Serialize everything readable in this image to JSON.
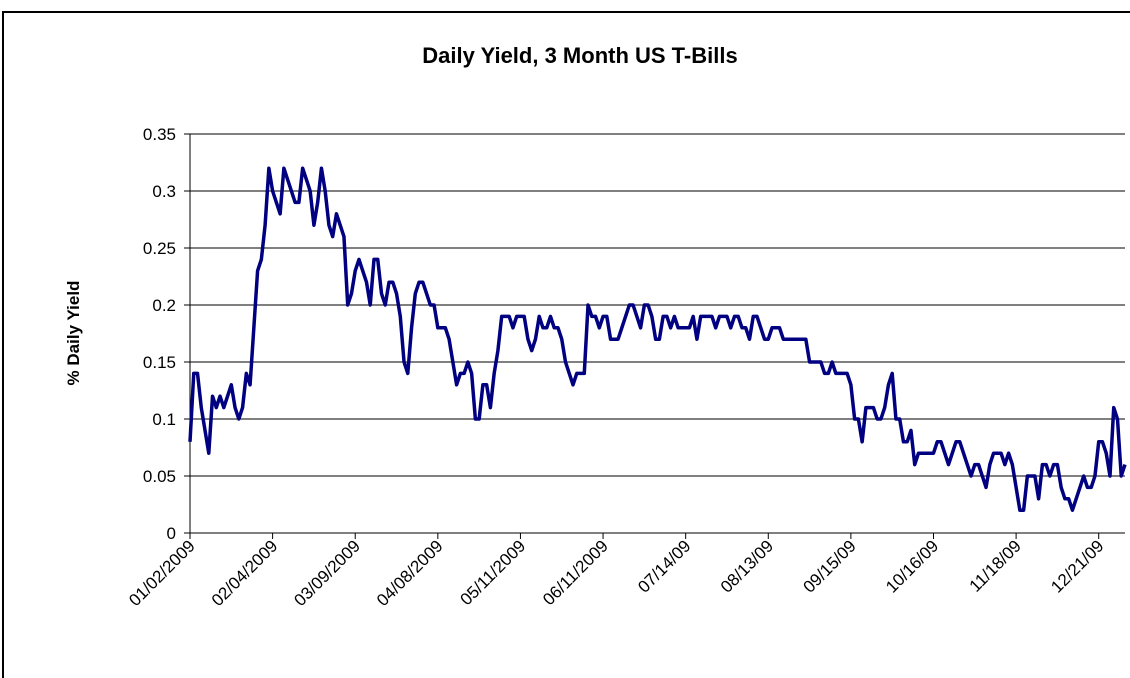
{
  "chart_data": {
    "type": "line",
    "title": "Daily Yield, 3 Month US T-Bills",
    "y_label": "% Daily Yield",
    "color": "#000080",
    "grid": true,
    "ylim": [
      0,
      0.35
    ],
    "yticks": [
      0,
      0.05,
      0.1,
      0.15,
      0.2,
      0.25,
      0.3,
      0.35
    ],
    "categories": [
      "01/02/2009",
      null,
      null,
      null,
      null,
      null,
      null,
      null,
      null,
      null,
      null,
      null,
      null,
      null,
      null,
      null,
      null,
      null,
      null,
      null,
      null,
      null,
      "02/04/2009",
      null,
      null,
      null,
      null,
      null,
      null,
      null,
      null,
      null,
      null,
      null,
      null,
      null,
      null,
      null,
      null,
      null,
      null,
      null,
      null,
      null,
      "03/09/2009",
      null,
      null,
      null,
      null,
      null,
      null,
      null,
      null,
      null,
      null,
      null,
      null,
      null,
      null,
      null,
      null,
      null,
      null,
      null,
      null,
      null,
      "04/08/2009",
      null,
      null,
      null,
      null,
      null,
      null,
      null,
      null,
      null,
      null,
      null,
      null,
      null,
      null,
      null,
      null,
      null,
      null,
      null,
      null,
      null,
      "05/11/2009",
      null,
      null,
      null,
      null,
      null,
      null,
      null,
      null,
      null,
      null,
      null,
      null,
      null,
      null,
      null,
      null,
      null,
      null,
      null,
      null,
      null,
      "06/11/2009",
      null,
      null,
      null,
      null,
      null,
      null,
      null,
      null,
      null,
      null,
      null,
      null,
      null,
      null,
      null,
      null,
      null,
      null,
      null,
      null,
      null,
      "07/14/09",
      null,
      null,
      null,
      null,
      null,
      null,
      null,
      null,
      null,
      null,
      null,
      null,
      null,
      null,
      null,
      null,
      null,
      null,
      null,
      null,
      null,
      "08/13/09",
      null,
      null,
      null,
      null,
      null,
      null,
      null,
      null,
      null,
      null,
      null,
      null,
      null,
      null,
      null,
      null,
      null,
      null,
      null,
      null,
      null,
      "09/15/09",
      null,
      null,
      null,
      null,
      null,
      null,
      null,
      null,
      null,
      null,
      null,
      null,
      null,
      null,
      null,
      null,
      null,
      null,
      null,
      null,
      null,
      "10/16/09",
      null,
      null,
      null,
      null,
      null,
      null,
      null,
      null,
      null,
      null,
      null,
      null,
      null,
      null,
      null,
      null,
      null,
      null,
      null,
      null,
      null,
      "11/18/09",
      null,
      null,
      null,
      null,
      null,
      null,
      null,
      null,
      null,
      null,
      null,
      null,
      null,
      null,
      null,
      null,
      null,
      null,
      null,
      null,
      null,
      "12/21/09",
      null,
      null,
      null,
      null,
      null,
      null,
      null
    ],
    "values": [
      0.08,
      0.14,
      0.14,
      0.11,
      0.09,
      0.07,
      0.12,
      0.11,
      0.12,
      0.11,
      0.12,
      0.13,
      0.11,
      0.1,
      0.11,
      0.14,
      0.13,
      0.18,
      0.23,
      0.24,
      0.27,
      0.32,
      0.3,
      0.29,
      0.28,
      0.32,
      0.31,
      0.3,
      0.29,
      0.29,
      0.32,
      0.31,
      0.3,
      0.27,
      0.29,
      0.32,
      0.3,
      0.27,
      0.26,
      0.28,
      0.27,
      0.26,
      0.2,
      0.21,
      0.23,
      0.24,
      0.23,
      0.22,
      0.2,
      0.24,
      0.24,
      0.21,
      0.2,
      0.22,
      0.22,
      0.21,
      0.19,
      0.15,
      0.14,
      0.18,
      0.21,
      0.22,
      0.22,
      0.21,
      0.2,
      0.2,
      0.18,
      0.18,
      0.18,
      0.17,
      0.15,
      0.13,
      0.14,
      0.14,
      0.15,
      0.14,
      0.1,
      0.1,
      0.13,
      0.13,
      0.11,
      0.14,
      0.16,
      0.19,
      0.19,
      0.19,
      0.18,
      0.19,
      0.19,
      0.19,
      0.17,
      0.16,
      0.17,
      0.19,
      0.18,
      0.18,
      0.19,
      0.18,
      0.18,
      0.17,
      0.15,
      0.14,
      0.13,
      0.14,
      0.14,
      0.14,
      0.2,
      0.19,
      0.19,
      0.18,
      0.19,
      0.19,
      0.17,
      0.17,
      0.17,
      0.18,
      0.19,
      0.2,
      0.2,
      0.19,
      0.18,
      0.2,
      0.2,
      0.19,
      0.17,
      0.17,
      0.19,
      0.19,
      0.18,
      0.19,
      0.18,
      0.18,
      0.18,
      0.18,
      0.19,
      0.17,
      0.19,
      0.19,
      0.19,
      0.19,
      0.18,
      0.19,
      0.19,
      0.19,
      0.18,
      0.19,
      0.19,
      0.18,
      0.18,
      0.17,
      0.19,
      0.19,
      0.18,
      0.17,
      0.17,
      0.18,
      0.18,
      0.18,
      0.17,
      0.17,
      0.17,
      0.17,
      0.17,
      0.17,
      0.17,
      0.15,
      0.15,
      0.15,
      0.15,
      0.14,
      0.14,
      0.15,
      0.14,
      0.14,
      0.14,
      0.14,
      0.13,
      0.1,
      0.1,
      0.08,
      0.11,
      0.11,
      0.11,
      0.1,
      0.1,
      0.11,
      0.13,
      0.14,
      0.1,
      0.1,
      0.08,
      0.08,
      0.09,
      0.06,
      0.07,
      0.07,
      0.07,
      0.07,
      0.07,
      0.08,
      0.08,
      0.07,
      0.06,
      0.07,
      0.08,
      0.08,
      0.07,
      0.06,
      0.05,
      0.06,
      0.06,
      0.05,
      0.04,
      0.06,
      0.07,
      0.07,
      0.07,
      0.06,
      0.07,
      0.06,
      0.04,
      0.02,
      0.02,
      0.05,
      0.05,
      0.05,
      0.03,
      0.06,
      0.06,
      0.05,
      0.06,
      0.06,
      0.04,
      0.03,
      0.03,
      0.02,
      0.03,
      0.04,
      0.05,
      0.04,
      0.04,
      0.05,
      0.08,
      0.08,
      0.07,
      0.05,
      0.11,
      0.1,
      0.05,
      0.06
    ]
  }
}
